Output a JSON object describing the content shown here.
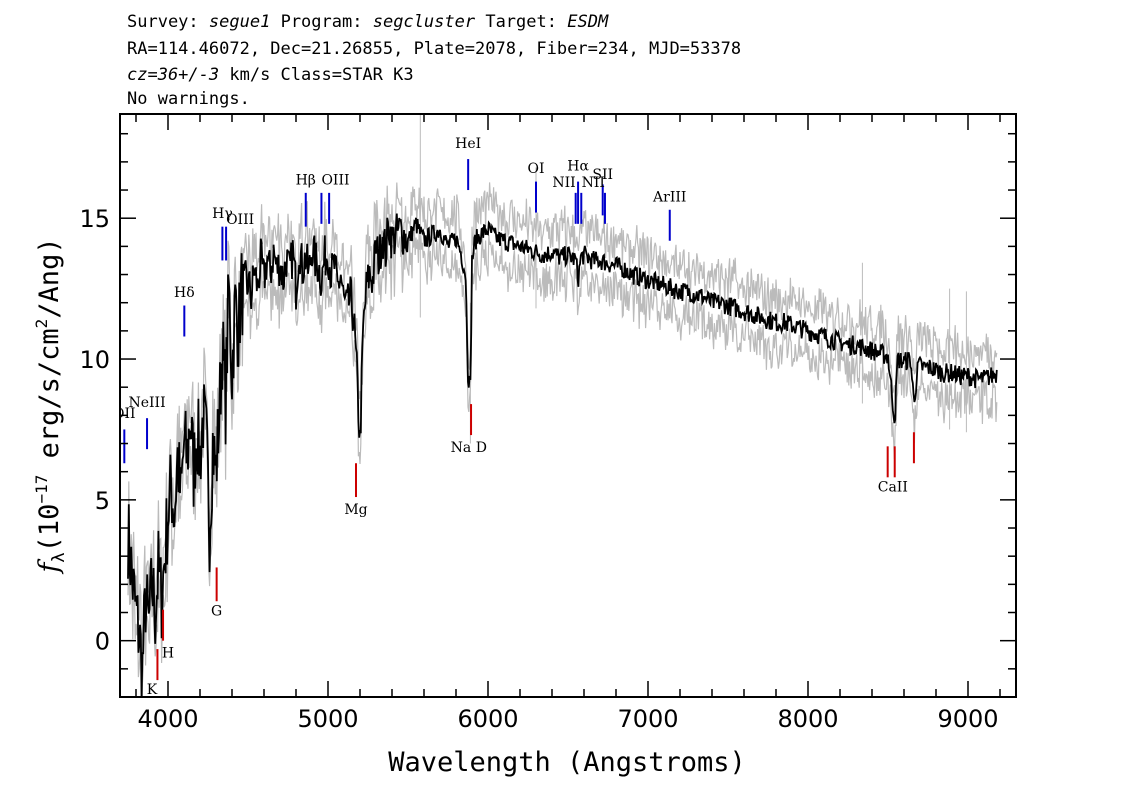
{
  "header": {
    "line1": {
      "survey_key": "Survey:",
      "survey": "segue1",
      "program_key": "Program:",
      "program": "segcluster",
      "target_key": "Target:",
      "target": "ESDM"
    },
    "line2": "RA=114.46072, Dec=21.26855, Plate=2078, Fiber=234, MJD=53378",
    "line3": {
      "cz": "cz=36+/-3",
      "rest": "km/s Class=STAR K3"
    },
    "line4": "No warnings."
  },
  "chart_data": {
    "type": "line",
    "xlabel": "Wavelength (Angstroms)",
    "ylabel": "f_λ (10^-17 erg/s/cm^2/Ang)",
    "ylabel_parts": {
      "f": "f",
      "lambda": "λ",
      "open": "(10",
      "exp": "−17",
      "mid": " erg/s/cm",
      "sq": "2",
      "close": "/Ang)"
    },
    "xlim": [
      3700,
      9300
    ],
    "ylim": [
      -2,
      18.7
    ],
    "xticks": [
      4000,
      5000,
      6000,
      7000,
      8000,
      9000
    ],
    "xtick_labels": [
      "4000",
      "5000",
      "6000",
      "7000",
      "8000",
      "9000"
    ],
    "yticks": [
      0,
      5,
      10,
      15
    ],
    "ytick_labels": [
      "0",
      "5",
      "10",
      "15"
    ],
    "series": [
      {
        "role": "flux",
        "color": "#000000",
        "x": [
          3750,
          3780,
          3800,
          3820,
          3840,
          3860,
          3880,
          3900,
          3920,
          3940,
          3960,
          3980,
          4000,
          4020,
          4040,
          4060,
          4080,
          4100,
          4120,
          4140,
          4160,
          4180,
          4200,
          4220,
          4240,
          4260,
          4280,
          4300,
          4320,
          4340,
          4360,
          4380,
          4400,
          4420,
          4440,
          4460,
          4480,
          4500,
          4520,
          4540,
          4560,
          4580,
          4600,
          4620,
          4640,
          4660,
          4680,
          4700,
          4720,
          4740,
          4760,
          4780,
          4800,
          4820,
          4840,
          4860,
          4880,
          4900,
          4920,
          4940,
          4960,
          4980,
          5000,
          5020,
          5040,
          5060,
          5080,
          5100,
          5120,
          5140,
          5160,
          5180,
          5200,
          5220,
          5240,
          5260,
          5280,
          5300,
          5320,
          5340,
          5360,
          5380,
          5400,
          5450,
          5500,
          5550,
          5600,
          5650,
          5700,
          5750,
          5800,
          5830,
          5860,
          5875,
          5890,
          5900,
          5920,
          5950,
          6000,
          6050,
          6100,
          6150,
          6200,
          6250,
          6300,
          6350,
          6400,
          6450,
          6500,
          6550,
          6563,
          6580,
          6600,
          6650,
          6700,
          6750,
          6800,
          6850,
          6900,
          6950,
          7000,
          7050,
          7100,
          7150,
          7200,
          7250,
          7300,
          7350,
          7400,
          7450,
          7500,
          7550,
          7600,
          7650,
          7700,
          7750,
          7800,
          7850,
          7900,
          7950,
          8000,
          8050,
          8100,
          8150,
          8200,
          8250,
          8300,
          8350,
          8400,
          8450,
          8500,
          8542,
          8560,
          8600,
          8640,
          8662,
          8690,
          8720,
          8760,
          8800,
          8850,
          8900,
          8950,
          9000,
          9050,
          9100,
          9150,
          9180
        ],
        "y": [
          3.8,
          2.0,
          1.0,
          0.2,
          -1.0,
          1.5,
          0.5,
          2.0,
          1.0,
          2.5,
          1.5,
          3.0,
          4.5,
          5.5,
          4.5,
          6.5,
          5.0,
          7.0,
          6.5,
          8.0,
          6.0,
          7.5,
          6.5,
          8.0,
          7.0,
          4.0,
          7.0,
          6.0,
          8.0,
          10.5,
          8.5,
          12.5,
          9.5,
          12.0,
          11.0,
          12.5,
          11.8,
          12.8,
          12.2,
          13.2,
          12.5,
          13.5,
          12.8,
          13.6,
          13.0,
          13.8,
          13.2,
          13.4,
          12.8,
          13.6,
          13.0,
          13.8,
          12.5,
          14.0,
          13.2,
          13.6,
          13.0,
          14.0,
          13.5,
          13.3,
          12.8,
          13.6,
          13.8,
          13.0,
          13.3,
          12.5,
          13.0,
          12.0,
          11.8,
          12.2,
          11.5,
          9.5,
          7.0,
          11.0,
          12.5,
          13.0,
          12.8,
          14.0,
          13.5,
          14.5,
          13.8,
          14.8,
          14.2,
          14.6,
          14.2,
          14.8,
          14.2,
          14.4,
          14.6,
          14.0,
          14.3,
          13.8,
          13.0,
          9.5,
          9.0,
          13.5,
          14.2,
          14.4,
          14.6,
          14.3,
          14.2,
          14.1,
          14.0,
          13.9,
          13.8,
          13.7,
          13.8,
          13.6,
          13.7,
          13.5,
          12.8,
          13.6,
          13.7,
          13.5,
          13.5,
          13.4,
          13.3,
          13.2,
          13.0,
          12.9,
          12.8,
          12.7,
          12.6,
          12.5,
          12.4,
          12.4,
          12.3,
          12.2,
          12.0,
          12.0,
          11.9,
          11.8,
          11.7,
          11.6,
          11.5,
          11.4,
          11.3,
          11.3,
          11.2,
          11.1,
          11.0,
          10.9,
          10.8,
          10.7,
          10.6,
          10.5,
          10.5,
          10.4,
          10.3,
          10.2,
          10.1,
          7.8,
          10.0,
          9.9,
          10.0,
          8.5,
          9.8,
          9.7,
          9.7,
          9.6,
          9.5,
          9.5,
          9.4,
          9.4,
          9.3,
          9.3,
          9.4,
          9.5
        ]
      },
      {
        "role": "error",
        "color": "#bbbbbb",
        "halfwidth": 0.6
      }
    ],
    "emission_lines": [
      {
        "label": "OII",
        "x": 3727,
        "y0": 6.3,
        "y1": 7.5,
        "label_y": 7.9,
        "anchor": "middle"
      },
      {
        "label": "NeIII",
        "x": 3869,
        "y0": 6.8,
        "y1": 7.9,
        "label_y": 8.3,
        "anchor": "middle"
      },
      {
        "label": "Hδ",
        "x": 4102,
        "y0": 10.8,
        "y1": 11.9,
        "label_y": 12.2,
        "anchor": "middle"
      },
      {
        "label": "Hγ",
        "x": 4340,
        "y0": 13.5,
        "y1": 14.7,
        "label_y": 15.0,
        "anchor": "middle"
      },
      {
        "label": "OIII",
        "x": 4363,
        "y0": 13.5,
        "y1": 14.7,
        "label_y": 14.8,
        "anchor": "start"
      },
      {
        "label": "Hβ",
        "x": 4861,
        "y0": 14.7,
        "y1": 15.9,
        "label_y": 16.2,
        "anchor": "middle"
      },
      {
        "label": "OIII",
        "x": 4959,
        "y0": 14.8,
        "y1": 15.9,
        "label_y": 16.2,
        "anchor": "start"
      },
      {
        "label": "",
        "x": 5007,
        "y0": 14.8,
        "y1": 15.9
      },
      {
        "label": "HeI",
        "x": 5876,
        "y0": 16.0,
        "y1": 17.1,
        "label_y": 17.5,
        "anchor": "middle"
      },
      {
        "label": "OI",
        "x": 6300,
        "y0": 15.2,
        "y1": 16.3,
        "label_y": 16.6,
        "anchor": "middle"
      },
      {
        "label": "NII",
        "x": 6548,
        "y0": 14.8,
        "y1": 15.9,
        "label_y": 16.1,
        "anchor": "end"
      },
      {
        "label": "Hα",
        "x": 6563,
        "y0": 14.8,
        "y1": 16.3,
        "label_y": 16.7,
        "anchor": "middle"
      },
      {
        "label": "",
        "x": 6583,
        "y0": 14.8,
        "y1": 15.9
      },
      {
        "label": "SII",
        "x": 6717,
        "y0": 15.1,
        "y1": 16.2,
        "label_y": 16.4,
        "anchor": "middle"
      },
      {
        "label": "NII",
        "x": 6731,
        "y0": 14.8,
        "y1": 15.9,
        "label_y": 16.1,
        "anchor": "end"
      },
      {
        "label": "ArIII",
        "x": 7136,
        "y0": 14.2,
        "y1": 15.3,
        "label_y": 15.6,
        "anchor": "middle"
      }
    ],
    "absorption_lines": [
      {
        "label": "K",
        "x": 3934,
        "y0": -1.4,
        "y1": -0.3,
        "label_y": -1.9,
        "anchor": "middle",
        "label_x": 3900
      },
      {
        "label": "H",
        "x": 3969,
        "y0": 0,
        "y1": 1.1,
        "label_y": -0.6,
        "anchor": "middle",
        "label_x": 4000
      },
      {
        "label": "G",
        "x": 4304,
        "y0": 1.4,
        "y1": 2.6,
        "label_y": 0.9,
        "anchor": "middle"
      },
      {
        "label": "Mg",
        "x": 5175,
        "y0": 5.1,
        "y1": 6.3,
        "label_y": 4.5,
        "anchor": "middle"
      },
      {
        "label": "Na D",
        "x": 5894,
        "y0": 7.3,
        "y1": 8.4,
        "label_y": 6.7,
        "anchor": "middle",
        "label_x": 5880
      },
      {
        "label": "CaII",
        "x": 8498,
        "y0": 5.8,
        "y1": 6.9,
        "label_y": 5.3,
        "anchor": "middle",
        "label_x": 8530
      },
      {
        "label": "",
        "x": 8542,
        "y0": 5.8,
        "y1": 6.9
      },
      {
        "label": "",
        "x": 8662,
        "y0": 6.3,
        "y1": 7.4
      }
    ],
    "colors": {
      "emission": "#0000cc",
      "absorption": "#cc0000",
      "flux": "#000000",
      "error": "#bbbbbb"
    }
  }
}
